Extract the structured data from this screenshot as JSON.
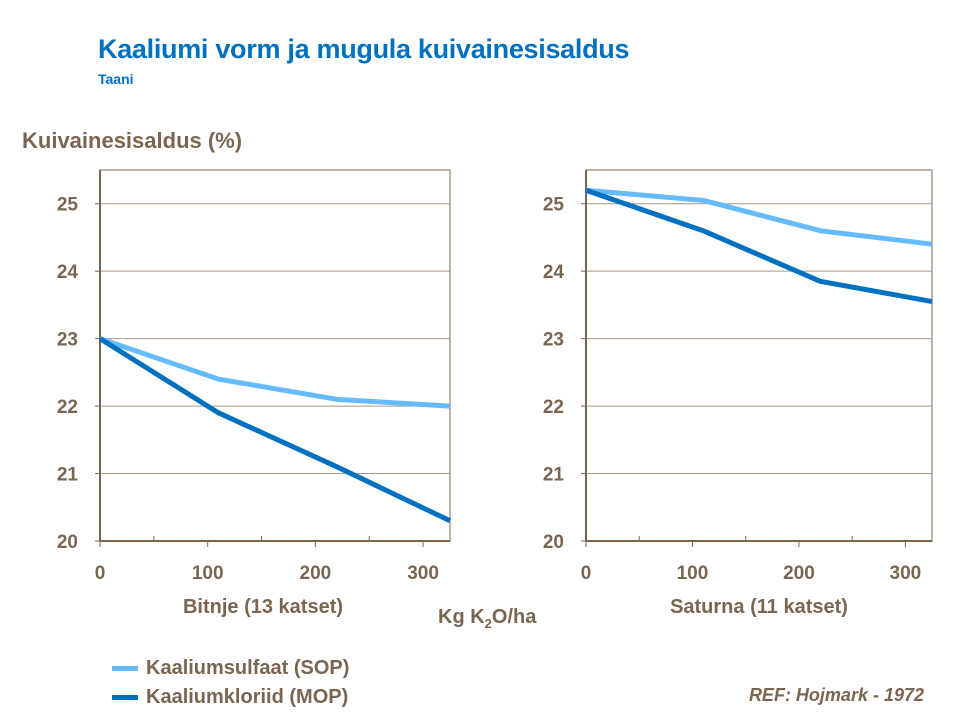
{
  "title": "Kaaliumi vorm ja mugula kuivainesisaldus",
  "subtitle": "Taani",
  "ylabel": "Kuivainesisaldus (%)",
  "xunit": {
    "pre": "Kg K",
    "sub": "2",
    "post": "O/ha"
  },
  "ref": "REF: Hojmark - 1972",
  "colors": {
    "sop": "#66BBFF",
    "mop": "#0070C0",
    "axis": "#7A6650",
    "frame": "#BFB3A6"
  },
  "chart_data": [
    {
      "type": "line",
      "xlabel": "Bitnje (13 katset)",
      "xlim": [
        0,
        325
      ],
      "ylim": [
        20,
        25.5
      ],
      "xticks": [
        0,
        100,
        200,
        300
      ],
      "yticks": [
        20,
        21,
        22,
        23,
        24,
        25
      ],
      "grid": true,
      "x": [
        0,
        110,
        220,
        325
      ],
      "series": [
        {
          "name": "Kaaliumsulfaat (SOP)",
          "key": "sop",
          "values": [
            23,
            22.4,
            22.1,
            22.0
          ]
        },
        {
          "name": "Kaaliumkloriid (MOP)",
          "key": "mop",
          "values": [
            23,
            21.9,
            21.1,
            20.3
          ]
        }
      ]
    },
    {
      "type": "line",
      "xlabel": "Saturna (11 katset)",
      "xlim": [
        0,
        325
      ],
      "ylim": [
        20,
        25.5
      ],
      "xticks": [
        0,
        100,
        200,
        300
      ],
      "yticks": [
        20,
        21,
        22,
        23,
        24,
        25
      ],
      "grid": true,
      "x": [
        0,
        110,
        220,
        325
      ],
      "series": [
        {
          "name": "Kaaliumsulfaat (SOP)",
          "key": "sop",
          "values": [
            25.2,
            25.05,
            24.6,
            24.4
          ]
        },
        {
          "name": "Kaaliumkloriid (MOP)",
          "key": "mop",
          "values": [
            25.2,
            24.6,
            23.85,
            23.55
          ]
        }
      ]
    }
  ],
  "legend": [
    {
      "label": "Kaaliumsulfaat (SOP)",
      "key": "sop"
    },
    {
      "label": "Kaaliumkloriid (MOP)",
      "key": "mop"
    }
  ]
}
